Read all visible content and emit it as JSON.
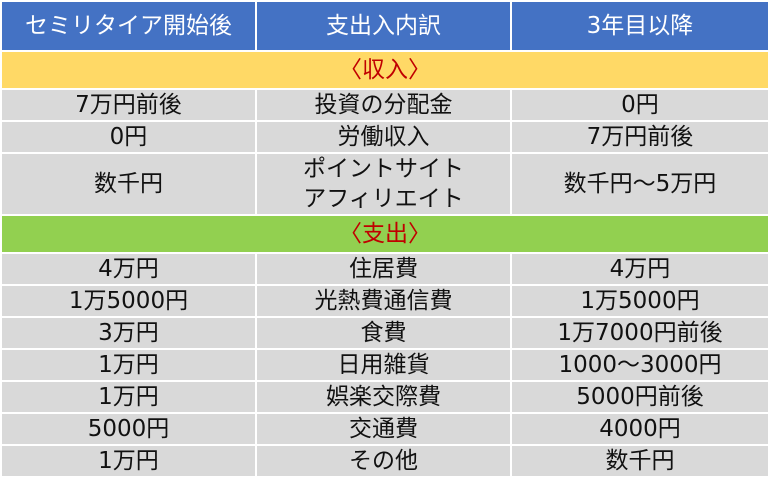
{
  "header": [
    "セミリタイア開始後",
    "支出入内訳",
    "3年目以降"
  ],
  "sections": [
    {
      "title": "〈収入〉",
      "rows": [
        [
          "7万円前後",
          "投資の分配金",
          "0円"
        ],
        [
          "0円",
          "労働収入",
          "7万円前後"
        ],
        [
          "数千円",
          "ポイントサイト\nアフィリエイト",
          "数千円〜5万円"
        ]
      ]
    },
    {
      "title": "〈支出〉",
      "rows": [
        [
          "4万円",
          "住居費",
          "4万円"
        ],
        [
          "1万5000円",
          "光熱費通信費",
          "1万5000円"
        ],
        [
          "3万円",
          "食費",
          "1万7000円前後"
        ],
        [
          "1万円",
          "日用雑貨",
          "1000〜3000円"
        ],
        [
          "1万円",
          "娯楽交際費",
          "5000円前後"
        ],
        [
          "5000円",
          "交通費",
          "4000円"
        ],
        [
          "1万円",
          "その他",
          "数千円"
        ]
      ]
    }
  ]
}
